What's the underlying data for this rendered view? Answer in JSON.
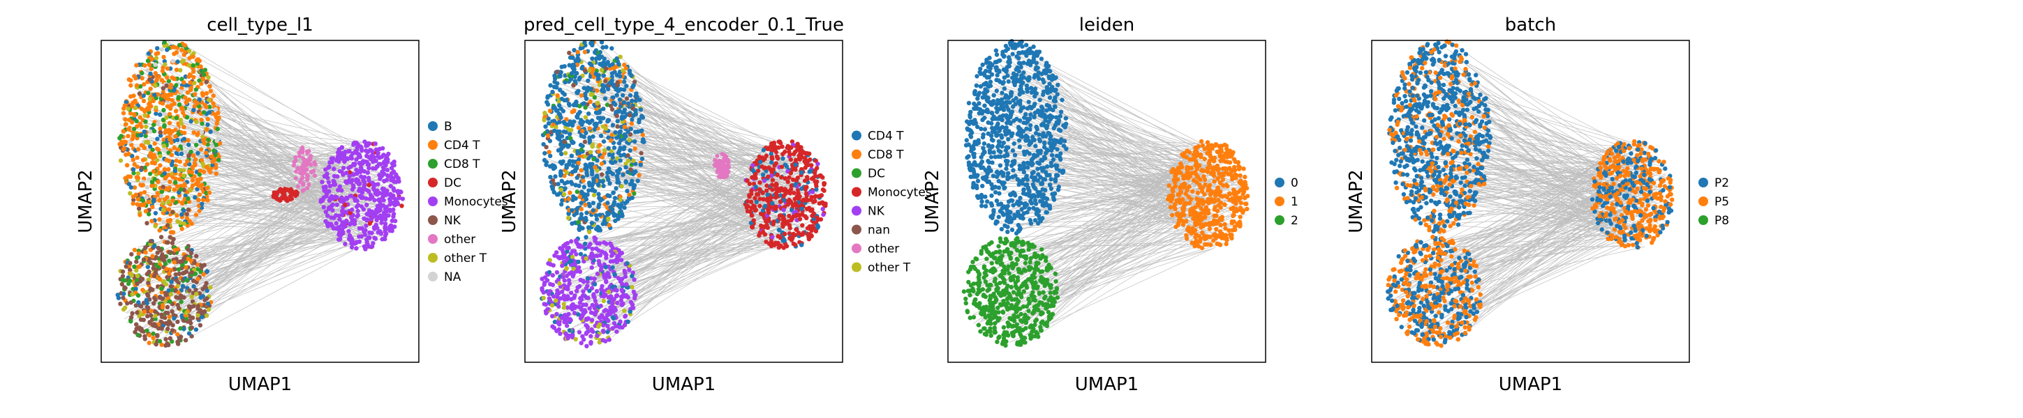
{
  "chart_data": [
    {
      "type": "scatter",
      "title": "cell_type_l1",
      "xlabel": "UMAP1",
      "ylabel": "UMAP2",
      "grid": false,
      "legend": "right",
      "series": [
        {
          "name": "B",
          "color": "#1f77b4"
        },
        {
          "name": "CD4 T",
          "color": "#ff7f0e"
        },
        {
          "name": "CD8 T",
          "color": "#2ca02c"
        },
        {
          "name": "DC",
          "color": "#d62728"
        },
        {
          "name": "Monocytes",
          "color": "#a23ff2"
        },
        {
          "name": "NK",
          "color": "#8c564b"
        },
        {
          "name": "other",
          "color": "#e377c2"
        },
        {
          "name": "other T",
          "color": "#bcbd22"
        },
        {
          "name": "NA",
          "color": "#d3d3d3"
        }
      ]
    },
    {
      "type": "scatter",
      "title": "pred_cell_type_4_encoder_0.1_True",
      "xlabel": "UMAP1",
      "ylabel": "UMAP2",
      "grid": false,
      "legend": "right",
      "series": [
        {
          "name": "CD4 T",
          "color": "#1f77b4"
        },
        {
          "name": "CD8 T",
          "color": "#ff7f0e"
        },
        {
          "name": "DC",
          "color": "#2ca02c"
        },
        {
          "name": "Monocytes",
          "color": "#d62728"
        },
        {
          "name": "NK",
          "color": "#a23ff2"
        },
        {
          "name": "nan",
          "color": "#8c564b"
        },
        {
          "name": "other",
          "color": "#e377c2"
        },
        {
          "name": "other T",
          "color": "#bcbd22"
        }
      ]
    },
    {
      "type": "scatter",
      "title": "leiden",
      "xlabel": "UMAP1",
      "ylabel": "UMAP2",
      "grid": false,
      "legend": "right",
      "series": [
        {
          "name": "0",
          "color": "#1f77b4"
        },
        {
          "name": "1",
          "color": "#ff7f0e"
        },
        {
          "name": "2",
          "color": "#2ca02c"
        }
      ]
    },
    {
      "type": "scatter",
      "title": "batch",
      "xlabel": "UMAP1",
      "ylabel": "UMAP2",
      "grid": false,
      "legend": "right",
      "series": [
        {
          "name": "P2",
          "color": "#1f77b4"
        },
        {
          "name": "P5",
          "color": "#ff7f0e"
        },
        {
          "name": "P8",
          "color": "#2ca02c"
        }
      ]
    }
  ]
}
